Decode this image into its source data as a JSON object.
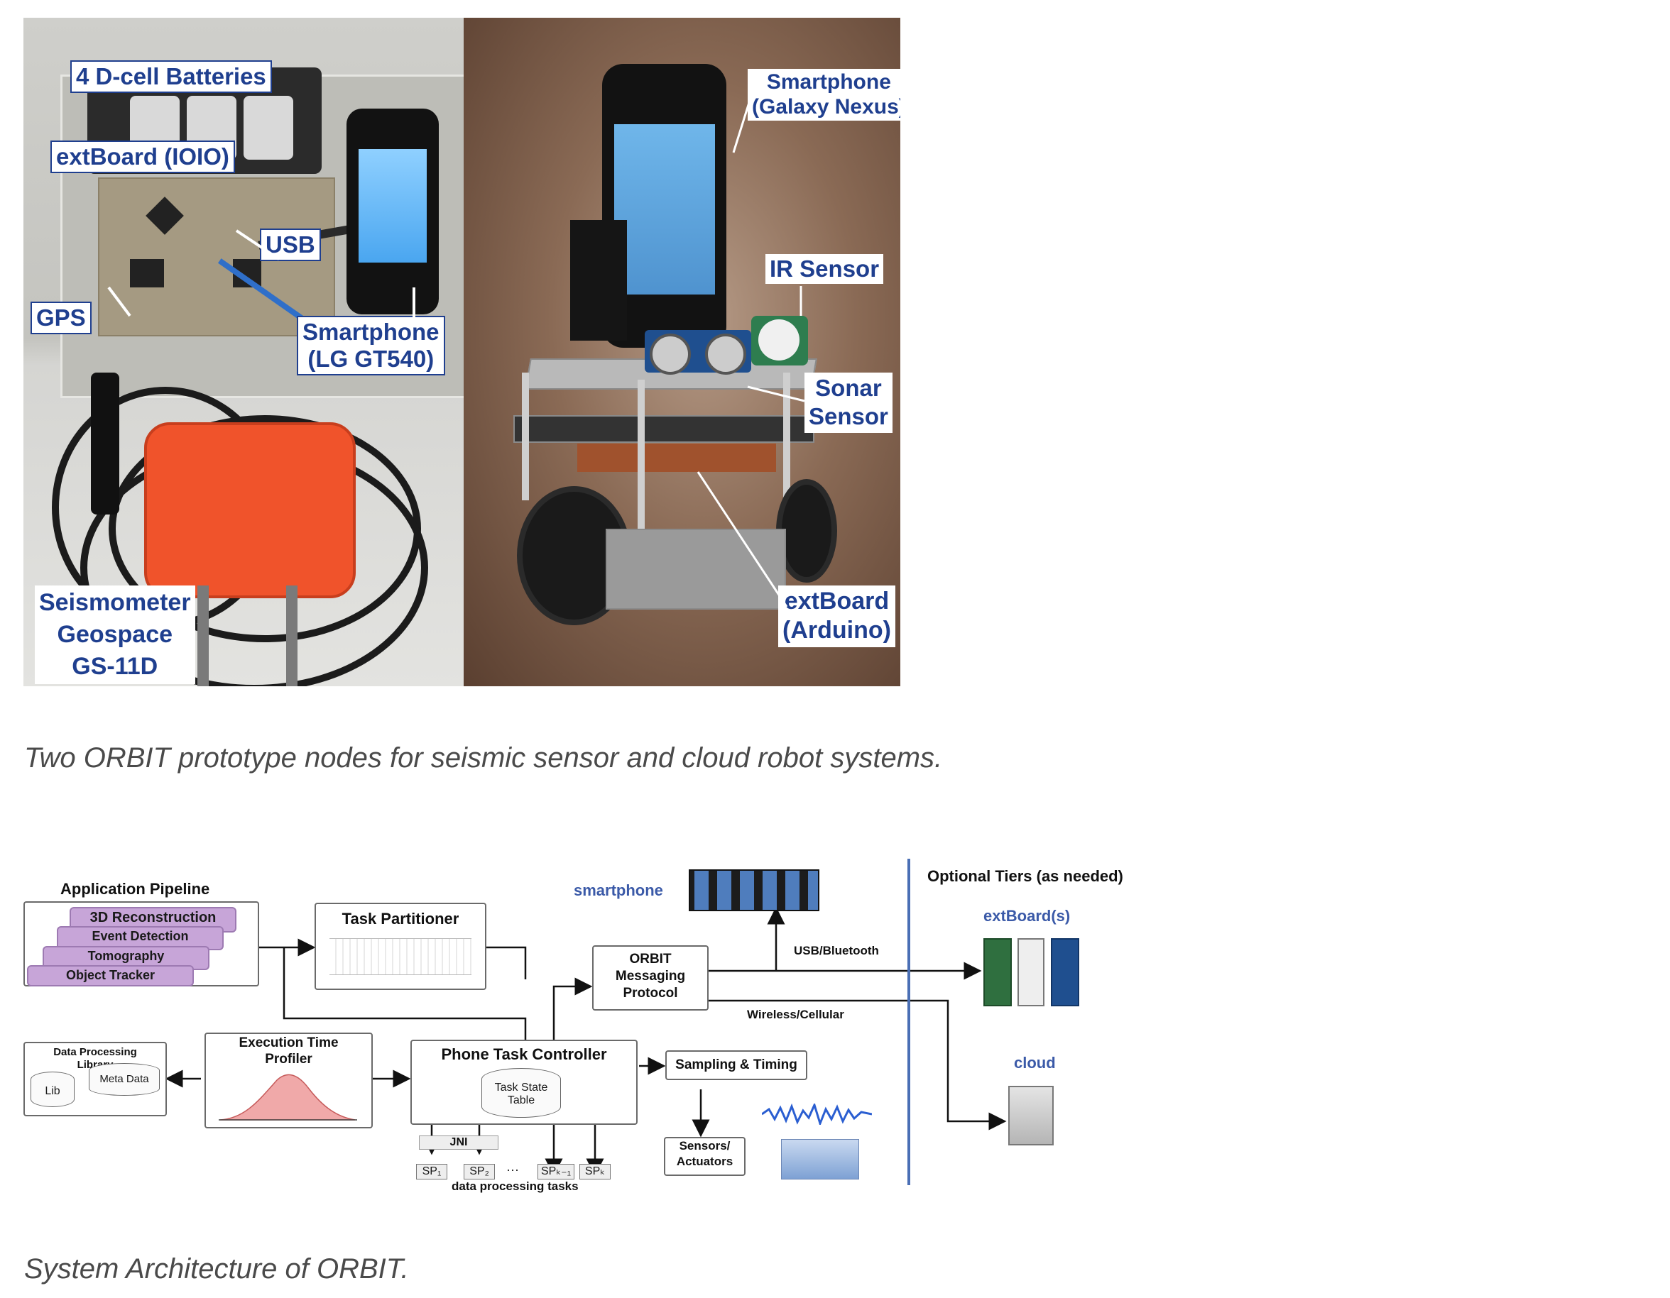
{
  "figure1": {
    "left_labels": {
      "batteries": "4 D-cell Batteries",
      "extboard": "extBoard (IOIO)",
      "usb": "USB",
      "gps": "GPS",
      "smartphone_line1": "Smartphone",
      "smartphone_line2": "(LG GT540)",
      "seismometer_line1": "Seismometer",
      "seismometer_line2": "Geospace",
      "seismometer_line3": "GS-11D"
    },
    "right_labels": {
      "smartphone_line1": "Smartphone",
      "smartphone_line2": "(Galaxy Nexus)",
      "ir_sensor": "IR Sensor",
      "sonar_line1": "Sonar",
      "sonar_line2": "Sensor",
      "extboard_line1": "extBoard",
      "extboard_line2": "(Arduino)"
    },
    "caption": "Two ORBIT prototype nodes for seismic sensor and cloud robot systems."
  },
  "figure2": {
    "pipeline": {
      "title": "Application Pipeline",
      "stages": [
        "3D Reconstruction",
        "Event Detection",
        "Tomography",
        "Object Tracker"
      ]
    },
    "task_partitioner": "Task Partitioner",
    "smartphone": "smartphone",
    "orbit_messaging": [
      "ORBIT",
      "Messaging",
      "Protocol"
    ],
    "usb_bluetooth": "USB/Bluetooth",
    "wireless_cellular": "Wireless/Cellular",
    "optional_tiers": "Optional Tiers (as needed)",
    "extboards": "extBoard(s)",
    "cloud": "cloud",
    "data_processing_library": [
      "Data Processing",
      "Library"
    ],
    "lib": "Lib",
    "meta_data": "Meta Data",
    "execution_time_profiler": [
      "Execution Time",
      "Profiler"
    ],
    "phone_task_controller": "Phone Task Controller",
    "task_state_table": [
      "Task State",
      "Table"
    ],
    "sampling_timing": "Sampling & Timing",
    "sensors_actuators": [
      "Sensors/",
      "Actuators"
    ],
    "jni": "JNI",
    "sp_labels": [
      "SP₁",
      "SP₂",
      "···",
      "SPₖ₋₁",
      "SPₖ"
    ],
    "data_processing_tasks": "data processing tasks",
    "caption": "System Architecture of ORBIT."
  },
  "colors": {
    "label_text": "#1f3f8f",
    "seismometer": "#f0532b",
    "pipeline_stage": "#c7a5d8",
    "tier_divider": "#4a6fb5"
  }
}
